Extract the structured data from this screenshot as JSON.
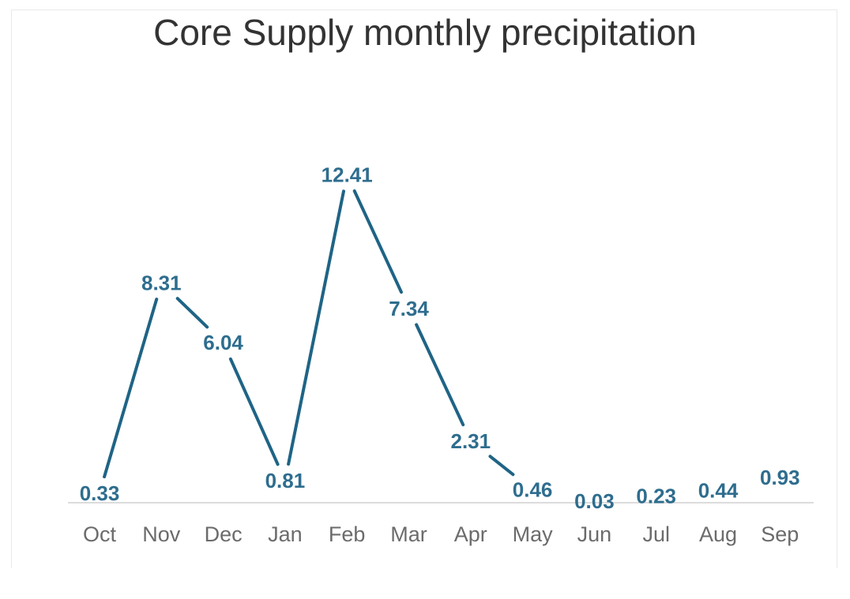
{
  "chart_data": {
    "type": "line",
    "title": "Core Supply monthly precipitation",
    "categories": [
      "Oct",
      "Nov",
      "Dec",
      "Jan",
      "Feb",
      "Mar",
      "Apr",
      "May",
      "Jun",
      "Jul",
      "Aug",
      "Sep"
    ],
    "series": [
      {
        "values": [
          0.33,
          8.31,
          6.04,
          0.81,
          12.41,
          7.34,
          2.31,
          0.46,
          0.03,
          0.23,
          0.44,
          0.93
        ],
        "labels": [
          "0.33",
          "8.31",
          "6.04",
          "0.81",
          "12.41",
          "7.34",
          "2.31",
          "0.46",
          "0.03",
          "0.23",
          "0.44",
          "0.93"
        ]
      }
    ],
    "xlabel": "",
    "ylabel": "",
    "ylim": [
      0,
      13.5
    ],
    "grid": false,
    "data_labels": true,
    "colors": {
      "line": "#1f6485",
      "label": "#2e6d8e",
      "axis": "#dcdcdc",
      "tick": "#6b6b6b"
    }
  }
}
